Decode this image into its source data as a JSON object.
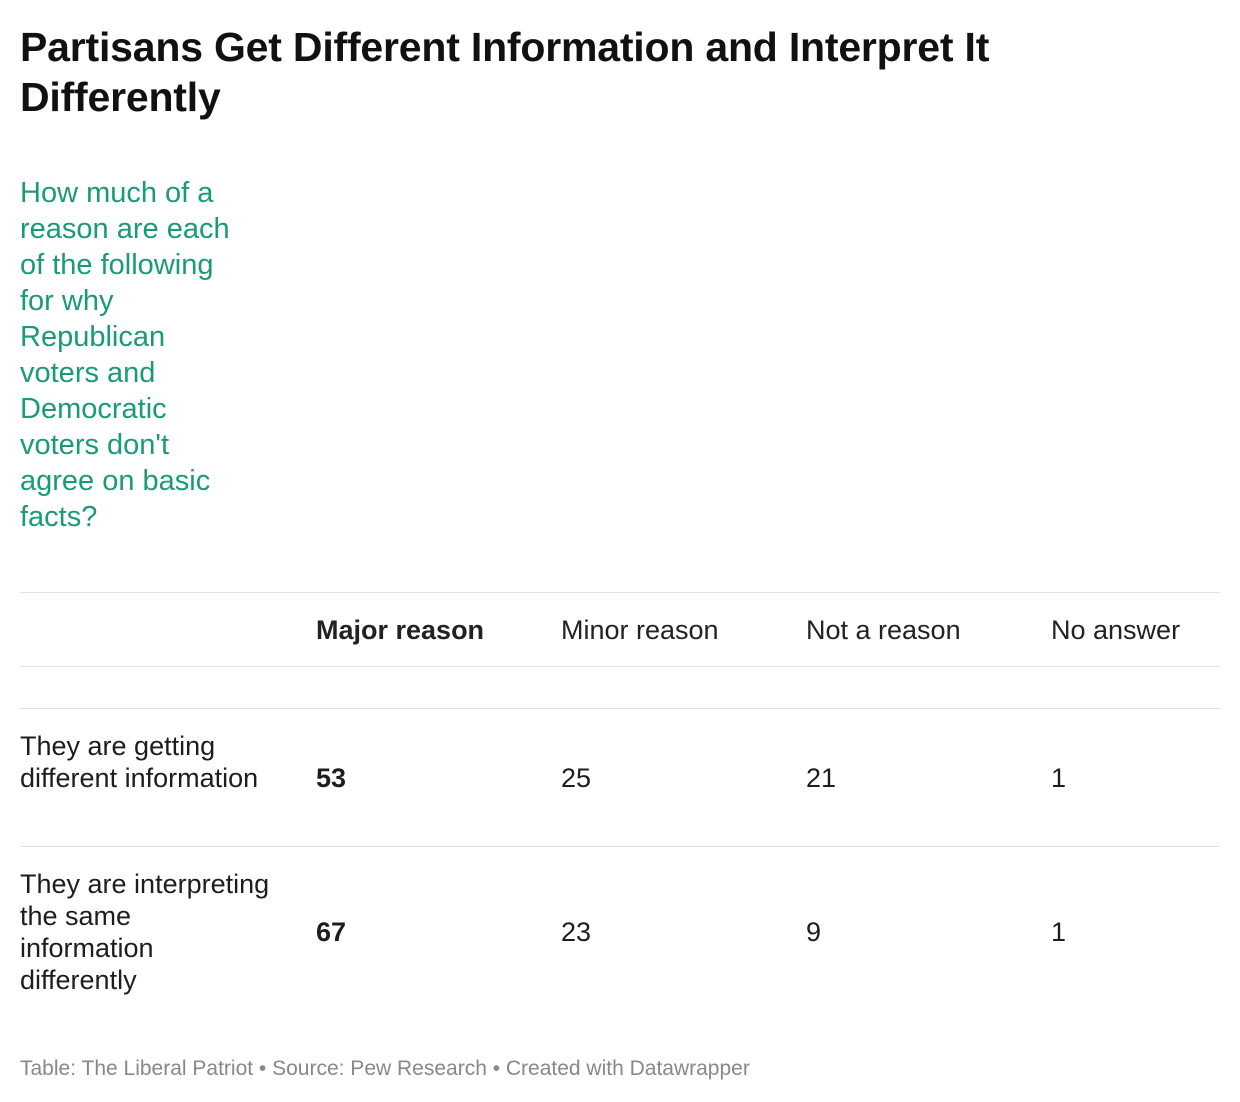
{
  "title": "Partisans Get Different Information and Interpret It Differently",
  "subtitle": "How much of a reason are each of the following for why Republican voters and Democratic voters don't agree on basic facts?",
  "chart_data": {
    "type": "table",
    "columns": [
      "",
      "Major reason",
      "Minor reason",
      "Not a reason",
      "No answer"
    ],
    "rows": [
      {
        "label": "They are getting different information",
        "values": [
          "53",
          "25",
          "21",
          "1"
        ]
      },
      {
        "label": "They are interpreting the same information differently",
        "values": [
          "67",
          "23",
          "9",
          "1"
        ]
      }
    ],
    "highlight_column": "Major reason",
    "unit": "percent"
  },
  "footer": {
    "text": "Table: The Liberal Patriot • Source: Pew Research • Created with Datawrapper"
  },
  "colors": {
    "subtitle": "#1a9a78",
    "rule": "#e2e2e2",
    "footer": "#888888"
  }
}
